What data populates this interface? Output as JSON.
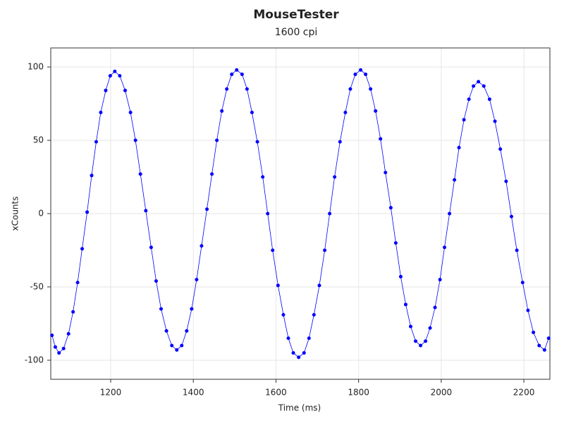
{
  "chart_data": {
    "type": "scatter",
    "title": "MouseTester",
    "subtitle": "1600 cpi",
    "x_label": "Time (ms)",
    "y_label": "xCounts",
    "x": [
      1058,
      1066,
      1075,
      1086,
      1098,
      1109,
      1120,
      1131,
      1143,
      1154,
      1165,
      1176,
      1188,
      1199,
      1210,
      1222,
      1235,
      1248,
      1260,
      1272,
      1285,
      1298,
      1310,
      1322,
      1335,
      1348,
      1360,
      1372,
      1384,
      1396,
      1408,
      1420,
      1433,
      1445,
      1457,
      1469,
      1481,
      1493,
      1505,
      1518,
      1530,
      1542,
      1555,
      1568,
      1580,
      1592,
      1605,
      1618,
      1630,
      1642,
      1655,
      1668,
      1680,
      1692,
      1705,
      1718,
      1730,
      1742,
      1755,
      1768,
      1780,
      1792,
      1805,
      1817,
      1829,
      1841,
      1853,
      1865,
      1878,
      1890,
      1902,
      1914,
      1926,
      1938,
      1950,
      1962,
      1973,
      1985,
      1997,
      2008,
      2020,
      2032,
      2043,
      2055,
      2067,
      2078,
      2090,
      2103,
      2117,
      2130,
      2143,
      2157,
      2170,
      2183,
      2197,
      2210,
      2223,
      2237,
      2250,
      2260
    ],
    "series": [
      {
        "color": "#0000ff",
        "show_line": true,
        "values": [
          -83,
          -91,
          -95,
          -92,
          -82,
          -67,
          -47,
          -24,
          1,
          26,
          49,
          69,
          84,
          94,
          97,
          94,
          84,
          69,
          50,
          27,
          2,
          -23,
          -46,
          -65,
          -80,
          -90,
          -93,
          -90,
          -80,
          -65,
          -45,
          -22,
          3,
          27,
          50,
          70,
          85,
          95,
          98,
          95,
          85,
          69,
          49,
          25,
          0,
          -25,
          -49,
          -69,
          -85,
          -95,
          -98,
          -95,
          -85,
          -69,
          -49,
          -25,
          0,
          25,
          49,
          69,
          85,
          95,
          98,
          95,
          85,
          70,
          51,
          28,
          4,
          -20,
          -43,
          -62,
          -77,
          -87,
          -90,
          -87,
          -78,
          -64,
          -45,
          -23,
          0,
          23,
          45,
          64,
          78,
          87,
          90,
          87,
          78,
          63,
          44,
          22,
          -2,
          -25,
          -47,
          -66,
          -81,
          -90,
          -93,
          -85
        ]
      }
    ],
    "xlim": [
      1055,
      2263
    ],
    "ylim": [
      -113,
      113
    ],
    "xticks": [
      1200,
      1400,
      1600,
      1800,
      2000,
      2200
    ],
    "yticks": [
      -100,
      -50,
      0,
      50,
      100
    ],
    "grid": true
  }
}
